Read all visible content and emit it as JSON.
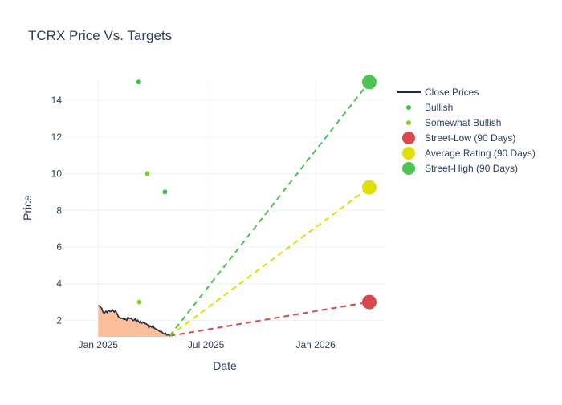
{
  "chart_data": {
    "type": "line",
    "title": "TCRX Price Vs. Targets",
    "xlabel": "Date",
    "ylabel": "Price",
    "x_range": [
      "2024-11-05",
      "2026-04-28"
    ],
    "ylim": [
      1.1,
      15.1
    ],
    "grid": true,
    "legend_position": "right",
    "x_ticks": [
      {
        "date": "2025-01-01",
        "label": "Jan 2025"
      },
      {
        "date": "2025-07-01",
        "label": "Jul 2025"
      },
      {
        "date": "2026-01-01",
        "label": "Jan 2026"
      }
    ],
    "y_ticks": [
      2,
      4,
      6,
      8,
      10,
      12,
      14
    ],
    "close_prices": {
      "x": [
        "2025-01-01",
        "2025-01-03",
        "2025-01-05",
        "2025-01-07",
        "2025-01-09",
        "2025-01-11",
        "2025-01-14",
        "2025-01-16",
        "2025-01-18",
        "2025-01-21",
        "2025-01-23",
        "2025-01-25",
        "2025-01-28",
        "2025-01-30",
        "2025-02-01",
        "2025-02-04",
        "2025-02-06",
        "2025-02-08",
        "2025-02-11",
        "2025-02-13",
        "2025-02-15",
        "2025-02-18",
        "2025-02-20",
        "2025-02-22",
        "2025-02-25",
        "2025-02-27",
        "2025-03-01",
        "2025-03-04",
        "2025-03-06",
        "2025-03-08",
        "2025-03-11",
        "2025-03-13",
        "2025-03-15",
        "2025-03-18",
        "2025-03-20",
        "2025-03-22",
        "2025-03-25",
        "2025-03-27",
        "2025-03-29",
        "2025-04-01",
        "2025-04-03",
        "2025-04-05",
        "2025-04-08",
        "2025-04-10",
        "2025-04-12",
        "2025-04-15",
        "2025-04-17",
        "2025-04-19",
        "2025-04-22",
        "2025-04-24",
        "2025-04-26",
        "2025-04-29",
        "2025-05-01"
      ],
      "y": [
        2.8,
        2.78,
        2.72,
        2.65,
        2.45,
        2.38,
        2.5,
        2.42,
        2.55,
        2.48,
        2.5,
        2.58,
        2.45,
        2.52,
        2.4,
        2.2,
        2.15,
        2.12,
        2.1,
        2.05,
        2.08,
        2.0,
        2.18,
        2.1,
        2.12,
        2.05,
        1.98,
        2.08,
        1.92,
        2.02,
        1.88,
        1.95,
        1.85,
        1.9,
        1.8,
        1.82,
        1.75,
        1.6,
        1.7,
        1.62,
        1.72,
        1.58,
        1.52,
        1.5,
        1.45,
        1.38,
        1.4,
        1.32,
        1.25,
        1.3,
        1.2,
        1.22,
        1.15
      ],
      "color": "#1f2d3d",
      "fill_color": "#fbbf9c"
    },
    "series": [
      {
        "name": "Close Prices",
        "kind": "line",
        "color": "#1f2d3d"
      },
      {
        "name": "Bullish",
        "kind": "dot",
        "color": "#3cc24a",
        "points": [
          {
            "x": "2025-03-10",
            "y": 15
          },
          {
            "x": "2025-04-23",
            "y": 9
          }
        ]
      },
      {
        "name": "Somewhat Bullish",
        "kind": "dot",
        "color": "#86d130",
        "points": [
          {
            "x": "2025-03-24",
            "y": 10
          },
          {
            "x": "2025-03-11",
            "y": 3
          }
        ]
      },
      {
        "name": "Street-Low (90 Days)",
        "kind": "target",
        "color": "#d9474f",
        "points": [
          {
            "x": "2026-04-01",
            "y": 3
          }
        ]
      },
      {
        "name": "Average Rating (90 Days)",
        "kind": "target",
        "color": "#e0e000",
        "points": [
          {
            "x": "2026-04-01",
            "y": 9.25
          }
        ]
      },
      {
        "name": "Street-High (90 Days)",
        "kind": "target",
        "color": "#4cc44f",
        "points": [
          {
            "x": "2026-04-01",
            "y": 15
          }
        ]
      }
    ],
    "projection_start": {
      "x": "2025-05-01",
      "y": 1.15
    }
  }
}
